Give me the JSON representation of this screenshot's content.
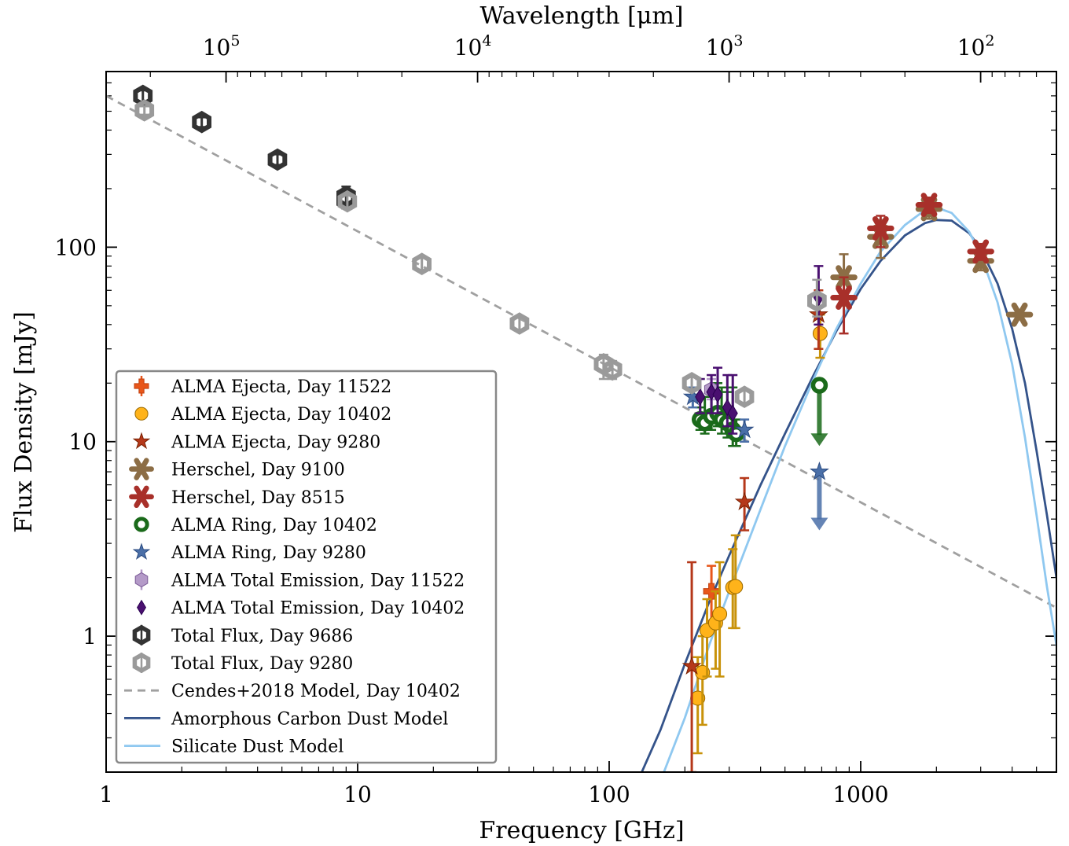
{
  "chart_data": {
    "type": "scatter",
    "xlabel": "Frequency [GHz]",
    "ylabel": "Flux Density [mJy]",
    "top_xlabel": "Wavelength [μm]",
    "xscale": "log",
    "yscale": "log",
    "xlim": [
      1,
      6000
    ],
    "ylim": [
      0.2,
      800
    ],
    "x_ticks": [
      {
        "value": 1,
        "label": "1"
      },
      {
        "value": 10,
        "label": "10"
      },
      {
        "value": 100,
        "label": "100"
      },
      {
        "value": 1000,
        "label": "1000"
      }
    ],
    "y_ticks": [
      {
        "value": 1,
        "label": "1"
      },
      {
        "value": 10,
        "label": "10"
      },
      {
        "value": 100,
        "label": "100"
      }
    ],
    "top_ticks": [
      {
        "value": 100000,
        "base": "10",
        "exp": "5"
      },
      {
        "value": 10000,
        "base": "10",
        "exp": "4"
      },
      {
        "value": 1000,
        "base": "10",
        "exp": "3"
      },
      {
        "value": 100,
        "base": "10",
        "exp": "2"
      }
    ],
    "legend_position": "lower-left",
    "series": [
      {
        "name": "ALMA Ejecta, Day 11522",
        "marker": "plus",
        "color": "#e8561a",
        "edge": "#c04010",
        "points": [
          {
            "x": 255,
            "y": 1.7,
            "lo": 1.2,
            "hi": 2.3
          }
        ]
      },
      {
        "name": "ALMA Ejecta, Day 10402",
        "marker": "circle",
        "color": "#ffb31a",
        "edge": "#9a6a00",
        "ecolor": "#c8920a",
        "points": [
          {
            "x": 225,
            "y": 0.48,
            "lo": 0.25,
            "hi": 0.78
          },
          {
            "x": 235,
            "y": 0.65,
            "lo": 0.35,
            "hi": 1.0
          },
          {
            "x": 245,
            "y": 1.07,
            "lo": 0.62,
            "hi": 1.55
          },
          {
            "x": 265,
            "y": 1.17,
            "lo": 0.68,
            "hi": 1.7
          },
          {
            "x": 275,
            "y": 1.3,
            "lo": 0.62,
            "hi": 2.4
          },
          {
            "x": 310,
            "y": 1.78,
            "lo": 1.1,
            "hi": 2.8
          },
          {
            "x": 318,
            "y": 1.8,
            "lo": 1.1,
            "hi": 3.3
          },
          {
            "x": 690,
            "y": 36,
            "lo": 27,
            "hi": 45
          }
        ]
      },
      {
        "name": "ALMA Ejecta, Day 9280",
        "marker": "star",
        "color": "#b5381a",
        "edge": "#7a2000",
        "points": [
          {
            "x": 213,
            "y": 0.7,
            "lo": 0.2,
            "hi": 2.4
          },
          {
            "x": 345,
            "y": 4.9,
            "lo": 3.5,
            "hi": 6.5
          },
          {
            "x": 680,
            "y": 45,
            "lo": 30,
            "hi": 60
          }
        ]
      },
      {
        "name": "Herschel, Day 9100",
        "marker": "asterisk",
        "color": "#8c6d45",
        "edge": "#5a4020",
        "points": [
          {
            "x": 857,
            "y": 70,
            "lo": 50,
            "hi": 92
          },
          {
            "x": 1200,
            "y": 113,
            "lo": 88,
            "hi": 138
          },
          {
            "x": 1870,
            "y": 157,
            "lo": 140,
            "hi": 175
          },
          {
            "x": 3000,
            "y": 85,
            "lo": 76,
            "hi": 94
          },
          {
            "x": 4280,
            "y": 45
          }
        ]
      },
      {
        "name": "Herschel, Day 8515",
        "marker": "asterisk",
        "color": "#a8302a",
        "edge": "#6a1a10",
        "points": [
          {
            "x": 857,
            "y": 55,
            "lo": 36,
            "hi": 70
          },
          {
            "x": 1200,
            "y": 125,
            "lo": 100,
            "hi": 145
          },
          {
            "x": 1870,
            "y": 165,
            "lo": 150,
            "hi": 180
          },
          {
            "x": 3000,
            "y": 95,
            "lo": 86,
            "hi": 104
          }
        ]
      },
      {
        "name": "ALMA Ring, Day 10402",
        "marker": "ring",
        "color": "#1a6a1a",
        "edge": "#0d4d0d",
        "points": [
          {
            "x": 230,
            "y": 13.0,
            "lo": 11.5,
            "hi": 15.0
          },
          {
            "x": 240,
            "y": 12.5,
            "lo": 11.0,
            "hi": 17.0
          },
          {
            "x": 255,
            "y": 13.5,
            "lo": 11.5,
            "hi": 19.0
          },
          {
            "x": 270,
            "y": 14.0,
            "lo": 12.0,
            "hi": 20.0
          },
          {
            "x": 280,
            "y": 13.0,
            "lo": 11.0,
            "hi": 19.0
          },
          {
            "x": 295,
            "y": 12.5,
            "lo": 10.5,
            "hi": 18.0
          },
          {
            "x": 310,
            "y": 11.5,
            "lo": 9.5,
            "hi": 19.0
          },
          {
            "x": 320,
            "y": 11.0,
            "lo": 9.5,
            "hi": 13.0
          },
          {
            "x": 685,
            "y": 19.5,
            "upper_limit": true,
            "arrow_to": 9.5
          }
        ]
      },
      {
        "name": "ALMA Ring, Day 9280",
        "marker": "star",
        "color": "#4a6fa8",
        "edge": "#2a4a80",
        "points": [
          {
            "x": 215,
            "y": 17.0,
            "lo": 15.0,
            "hi": 19.0
          },
          {
            "x": 345,
            "y": 11.5,
            "lo": 10.0,
            "hi": 13.0
          },
          {
            "x": 685,
            "y": 7.0,
            "upper_limit": true,
            "arrow_to": 3.5
          }
        ]
      },
      {
        "name": "ALMA Total Emission, Day 11522",
        "marker": "hexagon",
        "color": "#b49ac8",
        "edge": "#7a5a96",
        "points": [
          {
            "x": 255,
            "y": 18.5,
            "lo": 16.5,
            "hi": 21.0
          }
        ]
      },
      {
        "name": "ALMA Total Emission, Day 10402",
        "marker": "diamond",
        "color": "#4a1070",
        "edge": "#2a0050",
        "points": [
          {
            "x": 230,
            "y": 17.0,
            "lo": 14.0,
            "hi": 21.0
          },
          {
            "x": 255,
            "y": 18.0,
            "lo": 14.0,
            "hi": 22.0
          },
          {
            "x": 270,
            "y": 17.5,
            "lo": 14.0,
            "hi": 24.0
          },
          {
            "x": 295,
            "y": 15.0,
            "lo": 12.0,
            "hi": 22.0
          },
          {
            "x": 310,
            "y": 14.0,
            "lo": 11.0,
            "hi": 22.0
          },
          {
            "x": 680,
            "y": 55,
            "lo": 40,
            "hi": 80
          }
        ]
      },
      {
        "name": "Total Flux, Day 9686",
        "marker": "hexring",
        "color": "#333333",
        "edge": "#333333",
        "points": [
          {
            "x": 1.4,
            "y": 600,
            "lo": 560,
            "hi": 640
          },
          {
            "x": 2.4,
            "y": 440,
            "lo": 415,
            "hi": 465
          },
          {
            "x": 4.8,
            "y": 282,
            "lo": 265,
            "hi": 300
          },
          {
            "x": 9.0,
            "y": 182,
            "lo": 160,
            "hi": 205
          },
          {
            "x": 9.0,
            "y": 175,
            "lo": 158,
            "hi": 192
          }
        ]
      },
      {
        "name": "Total Flux, Day 9280",
        "marker": "hexring",
        "color": "#9a9a9a",
        "edge": "#9a9a9a",
        "points": [
          {
            "x": 1.42,
            "y": 505,
            "lo": 480,
            "hi": 530
          },
          {
            "x": 9.1,
            "y": 172,
            "lo": 160,
            "hi": 185
          },
          {
            "x": 18.0,
            "y": 82,
            "lo": 76,
            "hi": 88
          },
          {
            "x": 44.0,
            "y": 40.5,
            "lo": 37.5,
            "hi": 43.5
          },
          {
            "x": 95,
            "y": 25,
            "lo": 21,
            "hi": 28
          },
          {
            "x": 103,
            "y": 23.5,
            "lo": 21,
            "hi": 26
          },
          {
            "x": 213,
            "y": 20.0,
            "lo": 18.5,
            "hi": 21.5
          },
          {
            "x": 345,
            "y": 17.0,
            "lo": 15.5,
            "hi": 18.5
          },
          {
            "x": 670,
            "y": 53,
            "lo": 44,
            "hi": 68
          }
        ]
      }
    ],
    "lines": [
      {
        "name": "Cendes+2018 Model, Day 10402",
        "style": "dashed",
        "color": "#a0a0a0",
        "points": [
          {
            "x": 1,
            "y": 600
          },
          {
            "x": 6000,
            "y": 1.4
          }
        ]
      },
      {
        "name": "Amorphous Carbon Dust Model",
        "style": "solid",
        "color": "#34538a",
        "points": [
          {
            "x": 130,
            "y": 0.18
          },
          {
            "x": 160,
            "y": 0.33
          },
          {
            "x": 200,
            "y": 0.72
          },
          {
            "x": 250,
            "y": 1.5
          },
          {
            "x": 300,
            "y": 2.6
          },
          {
            "x": 400,
            "y": 6.0
          },
          {
            "x": 500,
            "y": 11.0
          },
          {
            "x": 650,
            "y": 22.0
          },
          {
            "x": 800,
            "y": 37.0
          },
          {
            "x": 1000,
            "y": 61.0
          },
          {
            "x": 1200,
            "y": 85.0
          },
          {
            "x": 1500,
            "y": 115.0
          },
          {
            "x": 1800,
            "y": 133.0
          },
          {
            "x": 2000,
            "y": 138.0
          },
          {
            "x": 2300,
            "y": 137.0
          },
          {
            "x": 2700,
            "y": 118.0
          },
          {
            "x": 3000,
            "y": 98.0
          },
          {
            "x": 3500,
            "y": 65.0
          },
          {
            "x": 4000,
            "y": 38.0
          },
          {
            "x": 4500,
            "y": 20.0
          },
          {
            "x": 5000,
            "y": 9.0
          },
          {
            "x": 5500,
            "y": 4.2
          },
          {
            "x": 6000,
            "y": 2.0
          }
        ]
      },
      {
        "name": "Silicate Dust Model",
        "style": "solid",
        "color": "#8fc8f0",
        "points": [
          {
            "x": 160,
            "y": 0.18
          },
          {
            "x": 200,
            "y": 0.38
          },
          {
            "x": 250,
            "y": 0.9
          },
          {
            "x": 300,
            "y": 1.7
          },
          {
            "x": 400,
            "y": 4.5
          },
          {
            "x": 500,
            "y": 9.5
          },
          {
            "x": 650,
            "y": 21.0
          },
          {
            "x": 800,
            "y": 38.0
          },
          {
            "x": 1000,
            "y": 65.0
          },
          {
            "x": 1200,
            "y": 95.0
          },
          {
            "x": 1500,
            "y": 130.0
          },
          {
            "x": 1800,
            "y": 155.0
          },
          {
            "x": 2000,
            "y": 160.0
          },
          {
            "x": 2300,
            "y": 150.0
          },
          {
            "x": 2700,
            "y": 120.0
          },
          {
            "x": 3000,
            "y": 92.0
          },
          {
            "x": 3500,
            "y": 52.0
          },
          {
            "x": 4000,
            "y": 25.0
          },
          {
            "x": 4500,
            "y": 10.5
          },
          {
            "x": 5000,
            "y": 4.2
          },
          {
            "x": 5500,
            "y": 1.8
          },
          {
            "x": 6000,
            "y": 0.9
          }
        ]
      }
    ],
    "legend_entries": [
      {
        "label": "ALMA Ejecta, Day 11522",
        "kind": "marker",
        "ref": 0
      },
      {
        "label": "ALMA Ejecta, Day 10402",
        "kind": "marker",
        "ref": 1
      },
      {
        "label": "ALMA Ejecta, Day 9280",
        "kind": "marker",
        "ref": 2
      },
      {
        "label": "Herschel, Day 9100",
        "kind": "marker",
        "ref": 3
      },
      {
        "label": "Herschel, Day 8515",
        "kind": "marker",
        "ref": 4
      },
      {
        "label": "ALMA Ring, Day 10402",
        "kind": "marker",
        "ref": 5
      },
      {
        "label": "ALMA Ring, Day 9280",
        "kind": "marker",
        "ref": 6
      },
      {
        "label": "ALMA Total Emission, Day 11522",
        "kind": "marker",
        "ref": 7
      },
      {
        "label": "ALMA Total Emission, Day 10402",
        "kind": "marker",
        "ref": 8
      },
      {
        "label": "Total Flux, Day 9686",
        "kind": "marker",
        "ref": 9
      },
      {
        "label": "Total Flux, Day 9280",
        "kind": "marker",
        "ref": 10
      },
      {
        "label": "Cendes+2018 Model, Day 10402",
        "kind": "line",
        "ref": 0
      },
      {
        "label": "Amorphous Carbon Dust Model",
        "kind": "line",
        "ref": 1
      },
      {
        "label": "Silicate Dust Model",
        "kind": "line",
        "ref": 2
      }
    ]
  }
}
